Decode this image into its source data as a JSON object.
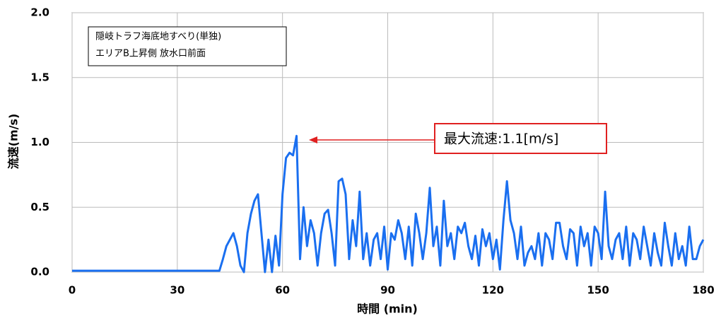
{
  "chart_data": {
    "type": "line",
    "ylabel": "流速(m/s)",
    "xlabel": "時間 (min)",
    "annotations": [
      "隠岐トラフ海底地すべり(単独)",
      "エリアB上昇側 放水口前面",
      "最大流速:1.1[m/s]"
    ],
    "xlim": [
      0,
      180
    ],
    "xticks": [
      0,
      30,
      60,
      90,
      120,
      150,
      180
    ],
    "ylim": [
      0,
      2
    ],
    "yticks": [
      {
        "value": 0,
        "label": "0.0"
      },
      0.5,
      {
        "value": 1,
        "label": "1.0"
      },
      1.5,
      {
        "value": 2,
        "label": "2.0"
      }
    ],
    "grid": true,
    "color": "#1a6ff0",
    "x": [
      0,
      42,
      43,
      44,
      45,
      46,
      47,
      48,
      49,
      50,
      51,
      52,
      53,
      54,
      55,
      56,
      57,
      58,
      59,
      60,
      61,
      62,
      63,
      64,
      65,
      66,
      67,
      68,
      69,
      70,
      71,
      72,
      73,
      74,
      75,
      76,
      77,
      78,
      79,
      80,
      81,
      82,
      83,
      84,
      85,
      86,
      87,
      88,
      89,
      90,
      91,
      92,
      93,
      94,
      95,
      96,
      97,
      98,
      99,
      100,
      101,
      102,
      103,
      104,
      105,
      106,
      107,
      108,
      109,
      110,
      111,
      112,
      113,
      114,
      115,
      116,
      117,
      118,
      119,
      120,
      121,
      122,
      123,
      124,
      125,
      126,
      127,
      128,
      129,
      130,
      131,
      132,
      133,
      134,
      135,
      136,
      137,
      138,
      139,
      140,
      141,
      142,
      143,
      144,
      145,
      146,
      147,
      148,
      149,
      150,
      151,
      152,
      153,
      154,
      155,
      156,
      157,
      158,
      159,
      160,
      161,
      162,
      163,
      164,
      165,
      166,
      167,
      168,
      169,
      170,
      171,
      172,
      173,
      174,
      175,
      176,
      177,
      178,
      179,
      180
    ],
    "values": [
      0.01,
      0.01,
      0.1,
      0.2,
      0.25,
      0.3,
      0.2,
      0.05,
      0,
      0.3,
      0.45,
      0.55,
      0.6,
      0.3,
      0,
      0.25,
      0,
      0.28,
      0.05,
      0.6,
      0.88,
      0.92,
      0.9,
      1.05,
      0.1,
      0.5,
      0.2,
      0.4,
      0.3,
      0.05,
      0.3,
      0.45,
      0.48,
      0.3,
      0.05,
      0.7,
      0.72,
      0.6,
      0.1,
      0.4,
      0.2,
      0.62,
      0.1,
      0.3,
      0.05,
      0.25,
      0.3,
      0.1,
      0.35,
      0.02,
      0.3,
      0.25,
      0.4,
      0.3,
      0.1,
      0.35,
      0.05,
      0.45,
      0.3,
      0.1,
      0.3,
      0.65,
      0.2,
      0.35,
      0.05,
      0.55,
      0.2,
      0.3,
      0.1,
      0.35,
      0.3,
      0.38,
      0.2,
      0.1,
      0.28,
      0.05,
      0.33,
      0.2,
      0.3,
      0.1,
      0.25,
      0.02,
      0.4,
      0.7,
      0.4,
      0.3,
      0.1,
      0.35,
      0.05,
      0.15,
      0.2,
      0.1,
      0.3,
      0.05,
      0.3,
      0.25,
      0.1,
      0.38,
      0.38,
      0.2,
      0.1,
      0.33,
      0.3,
      0.05,
      0.35,
      0.2,
      0.3,
      0.05,
      0.35,
      0.3,
      0.1,
      0.62,
      0.2,
      0.1,
      0.25,
      0.3,
      0.1,
      0.35,
      0.05,
      0.3,
      0.25,
      0.1,
      0.35,
      0.2,
      0.05,
      0.3,
      0.15,
      0.05,
      0.38,
      0.2,
      0.05,
      0.3,
      0.1,
      0.2,
      0.05,
      0.35,
      0.1,
      0.1,
      0.2,
      0.25
    ]
  }
}
